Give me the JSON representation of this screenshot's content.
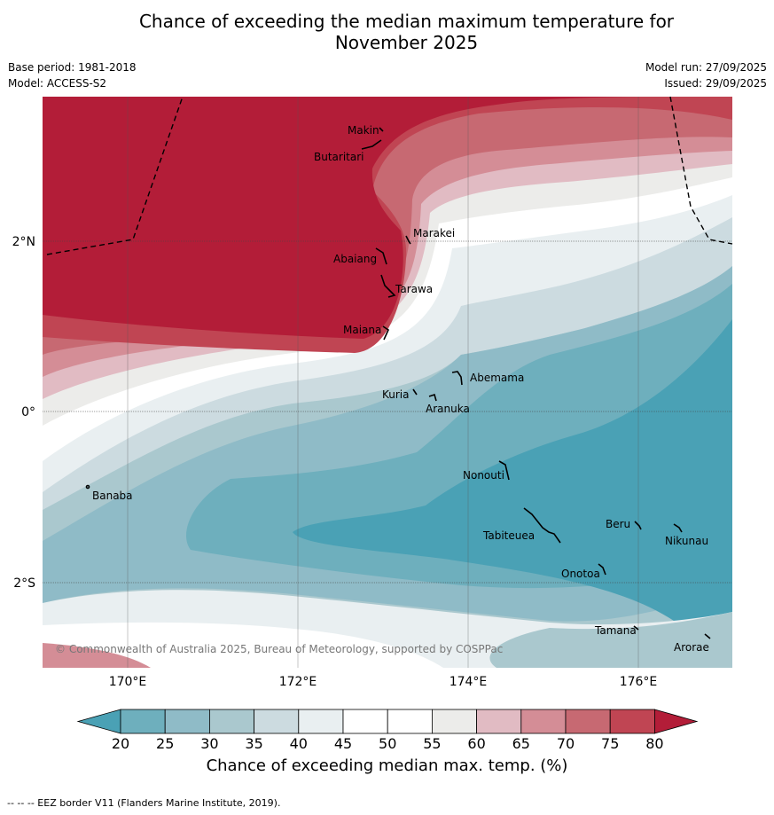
{
  "title_line1": "Chance of exceeding the median maximum temperature for",
  "title_line2": "November 2025",
  "base_period": "Base period: 1981-2018",
  "model": "Model: ACCESS-S2",
  "model_run": "Model run: 27/09/2025",
  "issued": "Issued: 29/09/2025",
  "copyright": "© Commonwealth of Australia 2025, Bureau of Meteorology, supported by COSPPac",
  "colorbar_label": "Chance of exceeding median max. temp. (%)",
  "footnote": "--  --  -- EEZ border V11 (Flanders Marine Institute, 2019).",
  "lon_labels": [
    "170°E",
    "172°E",
    "174°E",
    "176°E"
  ],
  "lat_labels": [
    "2°N",
    "0°",
    "2°S"
  ],
  "colorbar": {
    "ticks": [
      "20",
      "25",
      "30",
      "35",
      "40",
      "45",
      "50",
      "55",
      "60",
      "65",
      "70",
      "75",
      "80"
    ],
    "colors": [
      "#4aa1b5",
      "#6eafbd",
      "#8fbbc7",
      "#aac8ce",
      "#ccdbe0",
      "#e9eff1",
      "#ffffff",
      "#ffffff",
      "#ececea",
      "#e1bbc3",
      "#d48d96",
      "#c76972",
      "#c04553",
      "#b31d38"
    ]
  },
  "places": [
    {
      "name": "Makin"
    },
    {
      "name": "Butaritari"
    },
    {
      "name": "Marakei"
    },
    {
      "name": "Abaiang"
    },
    {
      "name": "Tarawa"
    },
    {
      "name": "Maiana"
    },
    {
      "name": "Abemama"
    },
    {
      "name": "Kuria"
    },
    {
      "name": "Aranuka"
    },
    {
      "name": "Banaba"
    },
    {
      "name": "Nonouti"
    },
    {
      "name": "Beru"
    },
    {
      "name": "Nikunau"
    },
    {
      "name": "Tabiteuea"
    },
    {
      "name": "Onotoa"
    },
    {
      "name": "Tamana"
    },
    {
      "name": "Arorae"
    }
  ]
}
